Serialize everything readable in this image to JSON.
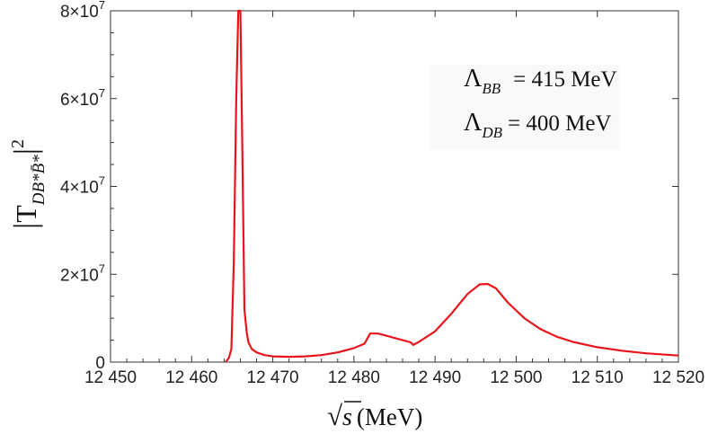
{
  "chart_data": {
    "type": "line",
    "title": "",
    "xlabel": {
      "root": "√",
      "var": "s",
      "unit": "(MeV)"
    },
    "ylabel": {
      "bar_left": "|",
      "symbol": "T",
      "subscript": "DB*B̄*",
      "bar_right": "|",
      "power": "2"
    },
    "xlim": [
      12450,
      12520
    ],
    "ylim": [
      0,
      80000000
    ],
    "x_ticks": [
      {
        "value": 12450,
        "label": "12 450"
      },
      {
        "value": 12460,
        "label": "12 460"
      },
      {
        "value": 12470,
        "label": "12 470"
      },
      {
        "value": 12480,
        "label": "12 480"
      },
      {
        "value": 12490,
        "label": "12 490"
      },
      {
        "value": 12500,
        "label": "12 500"
      },
      {
        "value": 12510,
        "label": "12 510"
      },
      {
        "value": 12520,
        "label": "12 520"
      }
    ],
    "y_ticks": [
      {
        "value": 0,
        "label": "0"
      },
      {
        "value": 20000000,
        "label": "2×10",
        "exp": "7"
      },
      {
        "value": 40000000,
        "label": "4×10",
        "exp": "7"
      },
      {
        "value": 60000000,
        "label": "6×10",
        "exp": "7"
      },
      {
        "value": 80000000,
        "label": "8×10",
        "exp": "7"
      }
    ],
    "series": [
      {
        "name": "|T|^2",
        "color": "#e8141b",
        "x": [
          12464.2,
          12464.6,
          12464.9,
          12465.2,
          12465.5,
          12465.75,
          12466.0,
          12466.25,
          12466.5,
          12466.8,
          12467.0,
          12467.4,
          12468.0,
          12469.0,
          12470.0,
          12472.0,
          12474.0,
          12476.0,
          12478.0,
          12480.0,
          12481.3,
          12482.0,
          12483.0,
          12485.0,
          12487.0,
          12487.3,
          12488.0,
          12490.0,
          12492.0,
          12494.0,
          12495.5,
          12496.5,
          12497.5,
          12499.0,
          12501.0,
          12503.0,
          12505.0,
          12507.0,
          12510.0,
          12513.0,
          12516.0,
          12520.0
        ],
        "values": [
          0,
          1000000,
          3000000,
          23000000,
          60000000,
          80000000,
          80000000,
          48000000,
          12000000,
          6500000,
          4500000,
          3000000,
          2200000,
          1600000,
          1300000,
          1200000,
          1300000,
          1600000,
          2200000,
          3200000,
          4200000,
          6500000,
          6500000,
          5500000,
          4500000,
          3900000,
          4600000,
          7000000,
          11000000,
          15500000,
          17700000,
          17800000,
          16800000,
          13500000,
          10000000,
          7500000,
          5800000,
          4600000,
          3400000,
          2600000,
          2000000,
          1500000
        ]
      }
    ],
    "legend": {
      "entries": [
        {
          "symbol": "Λ",
          "sub": "BB",
          "eq": "= 415 MeV"
        },
        {
          "symbol": "Λ",
          "sub": "DB",
          "eq": "= 400 MeV"
        }
      ],
      "position": "top-right"
    },
    "grid": false
  }
}
